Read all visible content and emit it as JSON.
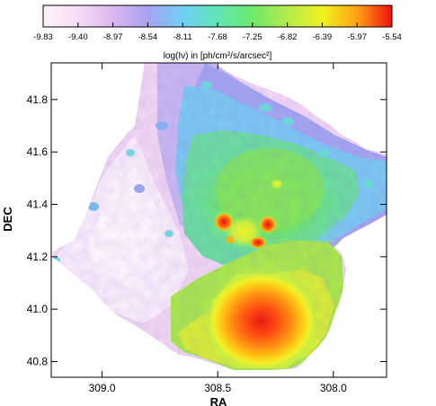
{
  "chart_data": {
    "type": "heatmap",
    "title": "",
    "colorbar": {
      "label": "log(Iν) in [ph/cm²/s/arcsec²]",
      "ticks": [
        "-9.83",
        "-9.40",
        "-8.97",
        "-8.54",
        "-8.11",
        "-7.68",
        "-7.25",
        "-6.82",
        "-6.39",
        "-5.97",
        "-5.54"
      ],
      "range": [
        -9.83,
        -5.54
      ],
      "colors": [
        "#fff3fb",
        "#e8b9ee",
        "#a6a0f0",
        "#6fd0f3",
        "#5fe6b0",
        "#72e86a",
        "#b6ec4c",
        "#f3f21f",
        "#ffbb13",
        "#ff6b12",
        "#ee1111"
      ]
    },
    "xlabel": "RA",
    "ylabel": "DEC",
    "xlim": [
      309.22,
      307.77
    ],
    "ylim": [
      40.74,
      41.94
    ],
    "x_ticks": [
      "309.0",
      "308.5",
      "308.0"
    ],
    "y_ticks": [
      "40.8",
      "41.0",
      "41.2",
      "41.4",
      "41.6",
      "41.8"
    ],
    "features": [
      {
        "description": "peak",
        "ra": 308.13,
        "dec": 40.98,
        "value": -5.54
      },
      {
        "description": "peak",
        "ra": 308.4,
        "dec": 41.3,
        "value": -6.2
      },
      {
        "description": "peak",
        "ra": 308.22,
        "dec": 41.3,
        "value": -6.2
      },
      {
        "description": "peak",
        "ra": 308.25,
        "dec": 41.25,
        "value": -6.2
      }
    ],
    "grid": false
  }
}
